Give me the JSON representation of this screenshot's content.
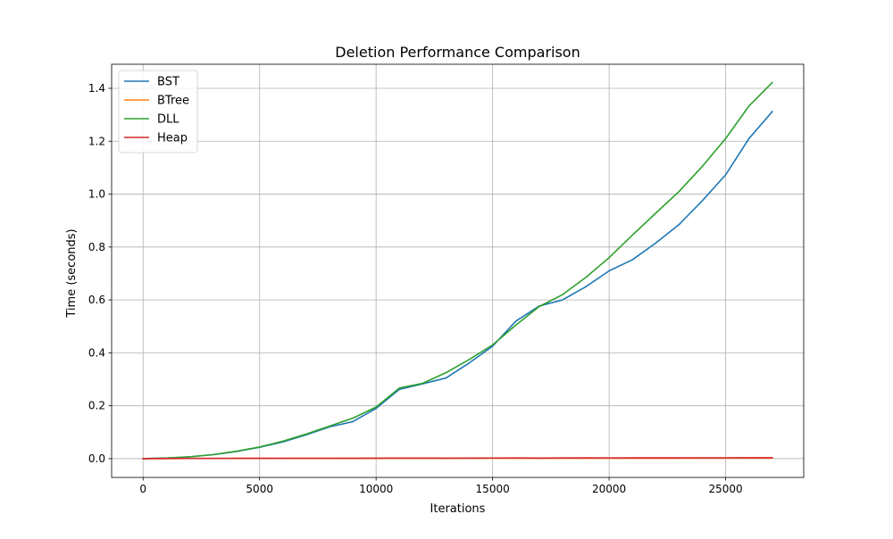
{
  "chart_data": {
    "type": "line",
    "title": "Deletion Performance Comparison",
    "xlabel": "Iterations",
    "ylabel": "Time (seconds)",
    "xlim": [
      -1350,
      28350
    ],
    "ylim": [
      -0.071,
      1.491
    ],
    "x_ticks": [
      0,
      5000,
      10000,
      15000,
      20000,
      25000
    ],
    "x_tick_labels": [
      "0",
      "5000",
      "10000",
      "15000",
      "20000",
      "25000"
    ],
    "y_ticks": [
      0.0,
      0.2,
      0.4,
      0.6,
      0.8,
      1.0,
      1.2,
      1.4
    ],
    "y_tick_labels": [
      "0.0",
      "0.2",
      "0.4",
      "0.6",
      "0.8",
      "1.0",
      "1.2",
      "1.4"
    ],
    "grid": true,
    "legend_position": "top-left",
    "x": [
      0,
      1000,
      2000,
      3000,
      4000,
      5000,
      6000,
      7000,
      8000,
      9000,
      10000,
      11000,
      12000,
      13000,
      14000,
      15000,
      16000,
      17000,
      18000,
      19000,
      20000,
      21000,
      22000,
      23000,
      24000,
      25000,
      26000,
      27000
    ],
    "series": [
      {
        "name": "BST",
        "color": "#1f77b4",
        "values": [
          0.0,
          0.002,
          0.007,
          0.015,
          0.027,
          0.043,
          0.063,
          0.09,
          0.12,
          0.14,
          0.19,
          0.262,
          0.283,
          0.305,
          0.362,
          0.425,
          0.52,
          0.577,
          0.6,
          0.65,
          0.71,
          0.752,
          0.815,
          0.885,
          0.975,
          1.073,
          1.21,
          1.312
        ]
      },
      {
        "name": "BTree",
        "color": "#ff7f0e",
        "values": [
          0.0,
          0.0005,
          0.0007,
          0.0008,
          0.0009,
          0.001,
          0.0011,
          0.0012,
          0.0012,
          0.0012,
          0.0013,
          0.0014,
          0.0014,
          0.0015,
          0.0015,
          0.0016,
          0.0016,
          0.0016,
          0.0017,
          0.0018,
          0.0018,
          0.0018,
          0.0019,
          0.0019,
          0.002,
          0.002,
          0.0021,
          0.0022
        ]
      },
      {
        "name": "DLL",
        "color": "#2ca02c",
        "values": [
          0.0,
          0.002,
          0.007,
          0.015,
          0.028,
          0.044,
          0.066,
          0.093,
          0.123,
          0.153,
          0.195,
          0.267,
          0.285,
          0.325,
          0.375,
          0.43,
          0.505,
          0.575,
          0.62,
          0.685,
          0.76,
          0.845,
          0.928,
          1.01,
          1.105,
          1.21,
          1.333,
          1.422
        ]
      },
      {
        "name": "Heap",
        "color": "#d62728",
        "values": [
          0.0,
          0.0006,
          0.0008,
          0.001,
          0.0012,
          0.0013,
          0.0014,
          0.0015,
          0.0015,
          0.0012,
          0.0016,
          0.002,
          0.0021,
          0.0018,
          0.0022,
          0.0024,
          0.0025,
          0.0022,
          0.0026,
          0.003,
          0.0028,
          0.0029,
          0.003,
          0.0031,
          0.0032,
          0.0032,
          0.0034,
          0.0036
        ]
      }
    ]
  }
}
